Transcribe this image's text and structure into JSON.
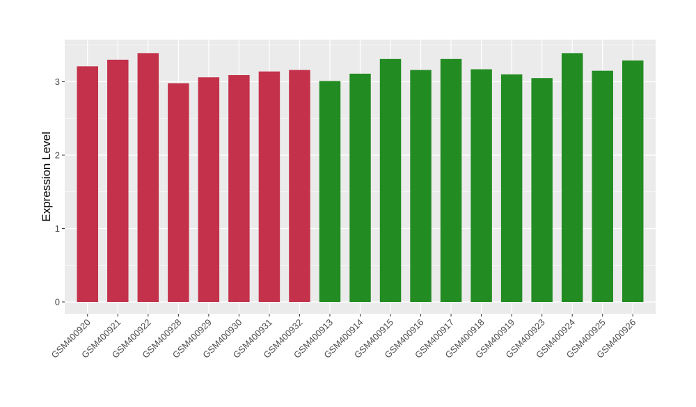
{
  "chart_data": {
    "type": "bar",
    "title": "",
    "xlabel": "",
    "ylabel": "Expression Level",
    "ylim": [
      -0.2,
      3.55
    ],
    "yticks": [
      0,
      1,
      2,
      3
    ],
    "grid": true,
    "legend": "none",
    "colors": {
      "panel_background": "#ebebeb",
      "grid_major": "#ffffff",
      "group_1": "#c3314a",
      "group_2": "#228b22"
    },
    "categories": [
      "GSM400920",
      "GSM400921",
      "GSM400922",
      "GSM400928",
      "GSM400929",
      "GSM400930",
      "GSM400931",
      "GSM400932",
      "GSM400913",
      "GSM400914",
      "GSM400915",
      "GSM400916",
      "GSM400917",
      "GSM400918",
      "GSM400919",
      "GSM400923",
      "GSM400924",
      "GSM400925",
      "GSM400926"
    ],
    "values": [
      3.21,
      3.3,
      3.39,
      2.98,
      3.06,
      3.09,
      3.14,
      3.16,
      3.01,
      3.11,
      3.31,
      3.16,
      3.31,
      3.17,
      3.1,
      3.05,
      3.39,
      3.15,
      3.29
    ],
    "bar_groups": [
      "group_1",
      "group_1",
      "group_1",
      "group_1",
      "group_1",
      "group_1",
      "group_1",
      "group_1",
      "group_2",
      "group_2",
      "group_2",
      "group_2",
      "group_2",
      "group_2",
      "group_2",
      "group_2",
      "group_2",
      "group_2",
      "group_2"
    ]
  }
}
